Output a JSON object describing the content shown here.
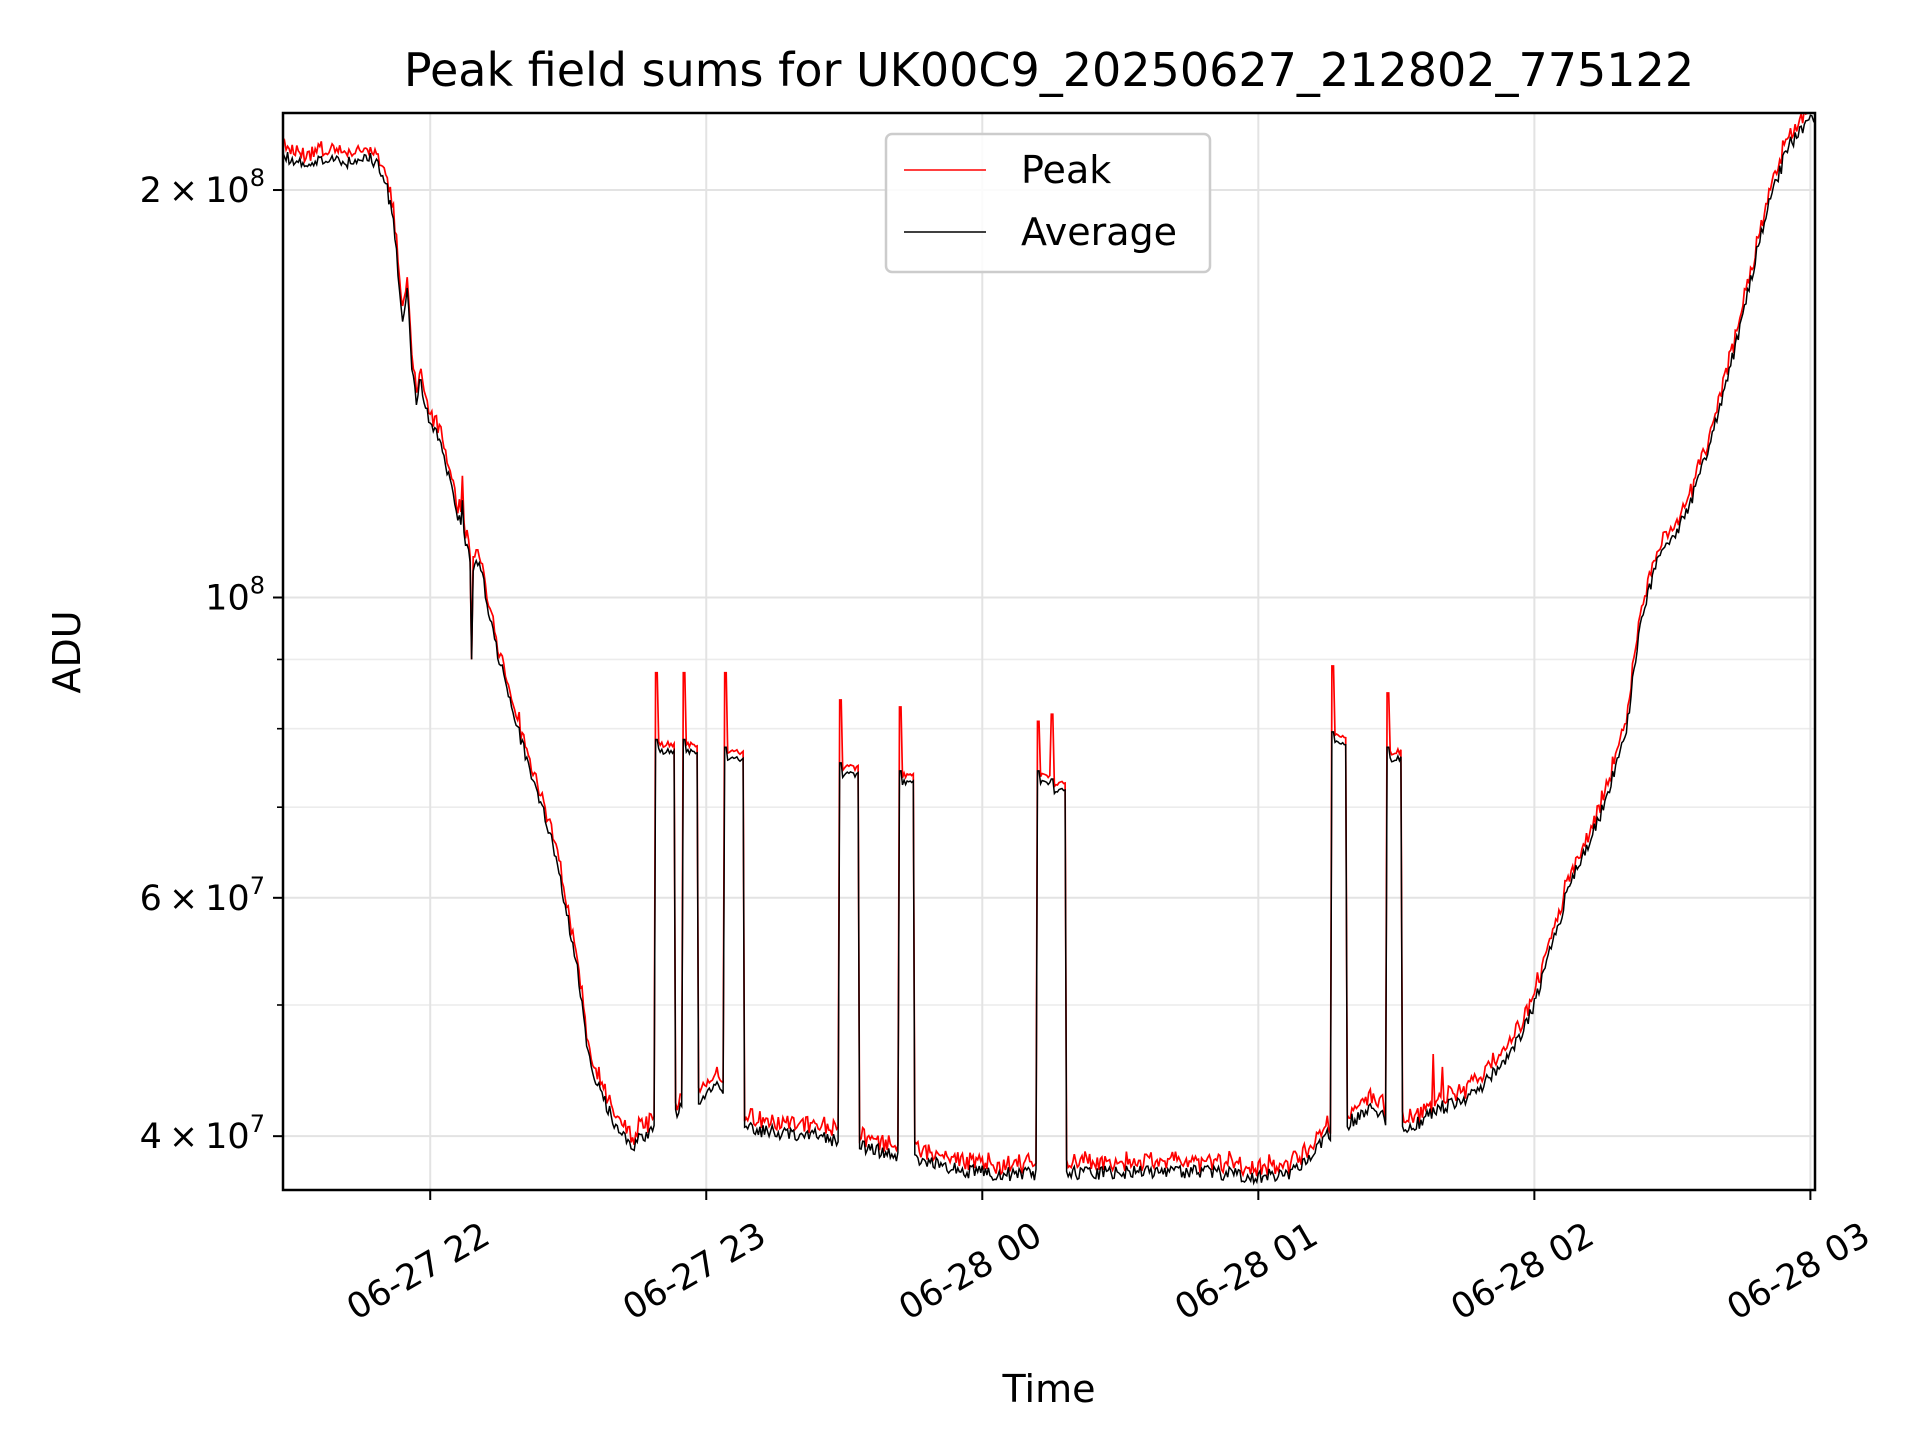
{
  "chart_data": {
    "type": "line",
    "title": "Peak field sums for UK00C9_20250627_212802_775122",
    "xlabel": "Time",
    "ylabel": "ADU",
    "y_scale": "log",
    "ylim": [
      36500000,
      228000000
    ],
    "xlim": [
      "2025-06-27 21:28",
      "2025-06-28 03:01"
    ],
    "grid": true,
    "legend": {
      "position": "upper center",
      "entries": [
        "Peak",
        "Average"
      ]
    },
    "x_ticks": [
      {
        "time": "2025-06-27 22:00",
        "label": "06-27 22"
      },
      {
        "time": "2025-06-27 23:00",
        "label": "06-27 23"
      },
      {
        "time": "2025-06-28 00:00",
        "label": "06-28 00"
      },
      {
        "time": "2025-06-28 01:00",
        "label": "06-28 01"
      },
      {
        "time": "2025-06-28 02:00",
        "label": "06-28 02"
      },
      {
        "time": "2025-06-28 03:00",
        "label": "06-28 03"
      }
    ],
    "y_ticks": [
      {
        "value": 40000000,
        "mantissa": "4",
        "label": "4 × 10^7"
      },
      {
        "value": 60000000,
        "mantissa": "6",
        "label": "6 × 10^7"
      },
      {
        "value": 100000000,
        "mantissa": "",
        "label": "10^8"
      },
      {
        "value": 200000000,
        "mantissa": "2",
        "label": "2 × 10^8"
      }
    ],
    "y_minor_ticks": [
      50000000,
      70000000,
      80000000,
      90000000
    ],
    "series": [
      {
        "name": "Peak",
        "color": "#ff0000"
      },
      {
        "name": "Average",
        "color": "#000000"
      }
    ],
    "baseline": {
      "x": [
        "2025-06-27 21:28",
        "2025-06-27 21:32",
        "2025-06-27 21:37",
        "2025-06-27 21:42",
        "2025-06-27 21:47",
        "2025-06-27 21:50",
        "2025-06-27 21:52",
        "2025-06-27 21:54",
        "2025-06-27 21:55",
        "2025-06-27 21:56",
        "2025-06-27 21:57",
        "2025-06-27 21:58",
        "2025-06-27 21:59",
        "2025-06-27 22:01",
        "2025-06-27 22:03",
        "2025-06-27 22:05",
        "2025-06-27 22:07",
        "2025-06-27 22:09",
        "2025-06-27 22:11",
        "2025-06-27 22:13",
        "2025-06-27 22:15",
        "2025-06-27 22:17",
        "2025-06-27 22:20",
        "2025-06-27 22:23",
        "2025-06-27 22:26",
        "2025-06-27 22:29",
        "2025-06-27 22:32",
        "2025-06-27 22:34",
        "2025-06-27 22:36",
        "2025-06-27 22:40",
        "2025-06-27 22:44",
        "2025-06-27 22:48",
        "2025-06-27 22:51",
        "2025-06-27 22:55",
        "2025-06-27 22:58",
        "2025-06-27 23:01",
        "2025-06-27 23:04",
        "2025-06-27 23:08",
        "2025-06-27 23:15",
        "2025-06-27 23:25",
        "2025-06-27 23:40",
        "2025-06-27 23:50",
        "2025-06-27 23:55",
        "2025-06-28 00:05",
        "2025-06-28 00:15",
        "2025-06-28 00:30",
        "2025-06-28 00:45",
        "2025-06-28 00:55",
        "2025-06-28 01:00",
        "2025-06-28 01:07",
        "2025-06-28 01:10",
        "2025-06-28 01:15",
        "2025-06-28 01:20",
        "2025-06-28 01:25",
        "2025-06-28 01:30",
        "2025-06-28 01:35",
        "2025-06-28 01:40",
        "2025-06-28 01:45",
        "2025-06-28 01:50",
        "2025-06-28 01:55",
        "2025-06-28 02:00",
        "2025-06-28 02:05",
        "2025-06-28 02:08",
        "2025-06-28 02:12",
        "2025-06-28 02:15",
        "2025-06-28 02:20",
        "2025-06-28 02:23",
        "2025-06-28 02:27",
        "2025-06-28 02:31",
        "2025-06-28 02:35",
        "2025-06-28 02:38",
        "2025-06-28 02:42",
        "2025-06-28 02:45",
        "2025-06-28 02:50",
        "2025-06-28 02:55",
        "2025-06-28 03:01"
      ],
      "y": [
        212000000,
        209000000,
        211000000,
        209000000,
        212000000,
        205000000,
        190000000,
        160000000,
        170000000,
        148000000,
        140000000,
        145000000,
        137000000,
        133000000,
        128000000,
        118000000,
        112000000,
        106000000,
        105000000,
        97000000,
        90000000,
        85000000,
        78000000,
        72000000,
        67000000,
        60000000,
        53000000,
        47000000,
        44000000,
        41000000,
        39300000,
        40500000,
        41000000,
        42000000,
        42500000,
        43500000,
        43500000,
        40500000,
        40300000,
        40000000,
        38800000,
        38200000,
        37700000,
        37500000,
        37600000,
        37600000,
        37700000,
        37500000,
        37300000,
        37600000,
        38400000,
        40000000,
        41000000,
        42000000,
        40500000,
        41000000,
        42000000,
        42500000,
        44000000,
        46000000,
        50000000,
        57000000,
        62000000,
        66000000,
        70000000,
        80000000,
        95000000,
        108000000,
        112000000,
        120000000,
        130000000,
        145000000,
        160000000,
        190000000,
        215000000,
        228000000
      ]
    },
    "events": [
      {
        "start": "2025-06-27 22:49",
        "end": "2025-06-27 22:53",
        "peak": 88000000,
        "level": 77000000
      },
      {
        "start": "2025-06-27 22:55",
        "end": "2025-06-27 22:58",
        "peak": 88000000,
        "level": 77000000
      },
      {
        "start": "2025-06-27 23:04",
        "end": "2025-06-27 23:08",
        "peak": 88000000,
        "level": 76000000
      },
      {
        "start": "2025-06-27 23:29",
        "end": "2025-06-27 23:33",
        "peak": 84000000,
        "level": 74000000
      },
      {
        "start": "2025-06-27 23:42",
        "end": "2025-06-27 23:45",
        "peak": 83000000,
        "level": 73000000
      },
      {
        "start": "2025-06-28 00:12",
        "end": "2025-06-28 00:15",
        "peak": 81000000,
        "level": 73000000
      },
      {
        "start": "2025-06-28 00:15",
        "end": "2025-06-28 00:18",
        "peak": 82000000,
        "level": 72000000
      },
      {
        "start": "2025-06-28 01:16",
        "end": "2025-06-28 01:19",
        "peak": 89000000,
        "level": 78000000
      },
      {
        "start": "2025-06-28 01:28",
        "end": "2025-06-28 01:31",
        "peak": 85000000,
        "level": 76000000
      }
    ],
    "spikes": [
      {
        "time": "2025-06-27 22:07",
        "peak": 123000000,
        "average": 118000000
      },
      {
        "time": "2025-06-27 22:09",
        "peak": 90000000,
        "average": 90000000
      },
      {
        "time": "2025-06-28 01:38",
        "peak": 46000000,
        "average": 42000000
      },
      {
        "time": "2025-06-28 01:40",
        "peak": 45000000,
        "average": 42500000
      }
    ]
  }
}
